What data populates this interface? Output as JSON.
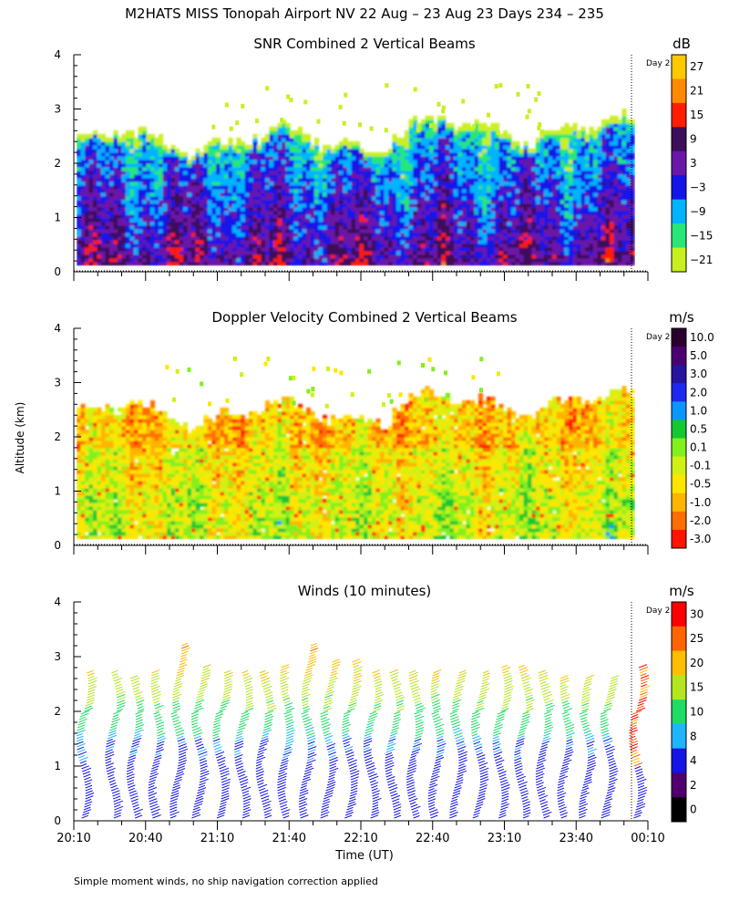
{
  "figure_title": "M2HATS MISS Tonopah Airport NV  22 Aug – 23 Aug 23 Days 234 – 235",
  "footer_note": "Simple moment winds, no ship navigation correction applied",
  "shared_ylabel": "Altitude (km)",
  "shared_xlabel": "Time (UT)",
  "day_marker_label": "Day 2",
  "chart_data": [
    {
      "type": "heatmap",
      "title": "SNR Combined 2 Vertical Beams",
      "ylabel": "Altitude (km)",
      "ylim": [
        0,
        4
      ],
      "y_ticks": [
        "0",
        "1",
        "2",
        "3",
        "4"
      ],
      "xlim_minutes": [
        0,
        240
      ],
      "x_ticks": [
        "20:10",
        "20:40",
        "21:10",
        "21:40",
        "22:10",
        "22:40",
        "23:10",
        "23:40",
        "00:10"
      ],
      "colorbar": {
        "unit": "dB",
        "labels": [
          "27",
          "21",
          "15",
          "9",
          "3",
          "−3",
          "−9",
          "−15",
          "−21"
        ],
        "colors": [
          "#ffc800",
          "#ff8a00",
          "#ff1e00",
          "#3c0f5a",
          "#6a18a8",
          "#1414e8",
          "#00b4ff",
          "#28e678",
          "#c8f020"
        ]
      },
      "approx_top_km": 2.4,
      "day_change_minutes": 228
    },
    {
      "type": "heatmap",
      "title": "Doppler Velocity Combined 2 Vertical Beams",
      "ylabel": "Altitude (km)",
      "ylim": [
        0,
        4
      ],
      "y_ticks": [
        "0",
        "1",
        "2",
        "3",
        "4"
      ],
      "xlim_minutes": [
        0,
        240
      ],
      "x_ticks": [
        "20:10",
        "20:40",
        "21:10",
        "21:40",
        "22:10",
        "22:40",
        "23:10",
        "23:40",
        "00:10"
      ],
      "colorbar": {
        "unit": "m/s",
        "labels": [
          "10.0",
          "5.0",
          "3.0",
          "2.0",
          "1.0",
          "0.5",
          "0.1",
          "-0.1",
          "-0.5",
          "-1.0",
          "-2.0",
          "-3.0"
        ],
        "colors": [
          "#2a0030",
          "#4a0070",
          "#2414a0",
          "#1e28f0",
          "#0a96ff",
          "#14c832",
          "#82f01e",
          "#d2f014",
          "#ffe600",
          "#ffb400",
          "#ff6e00",
          "#ff1400"
        ]
      },
      "approx_top_km": 2.4,
      "day_change_minutes": 228
    },
    {
      "type": "wind_barbs",
      "title": "Winds (10 minutes)",
      "ylabel": "Altitude (km)",
      "xlabel": "Time (UT)",
      "ylim": [
        0,
        4
      ],
      "y_ticks": [
        "0",
        "1",
        "2",
        "3",
        "4"
      ],
      "xlim_minutes": [
        0,
        240
      ],
      "x_ticks": [
        "20:10",
        "20:40",
        "21:10",
        "21:40",
        "22:10",
        "22:40",
        "23:10",
        "23:40",
        "00:10"
      ],
      "colorbar": {
        "unit": "m/s",
        "labels": [
          "30",
          "25",
          "20",
          "15",
          "10",
          "8",
          "4",
          "2",
          "0"
        ],
        "colors": [
          "#ff0000",
          "#ff6400",
          "#ffbe00",
          "#b4e61e",
          "#1edc64",
          "#1eb4ff",
          "#1414e6",
          "#50006e",
          "#000000"
        ]
      },
      "profile_times_minutes": [
        3,
        15,
        24,
        33,
        42,
        51,
        60,
        69,
        78,
        87,
        96,
        105,
        114,
        123,
        132,
        141,
        150,
        159,
        168,
        177,
        186,
        195,
        204,
        213,
        222,
        234
      ],
      "profile_tops_km": [
        2.7,
        2.7,
        2.6,
        2.7,
        3.2,
        2.8,
        2.7,
        2.7,
        2.7,
        2.8,
        3.2,
        2.9,
        2.9,
        2.7,
        2.7,
        2.7,
        2.7,
        2.7,
        2.7,
        2.8,
        2.8,
        2.7,
        2.6,
        2.6,
        2.6,
        2.8
      ],
      "day_change_minutes": 228
    }
  ]
}
